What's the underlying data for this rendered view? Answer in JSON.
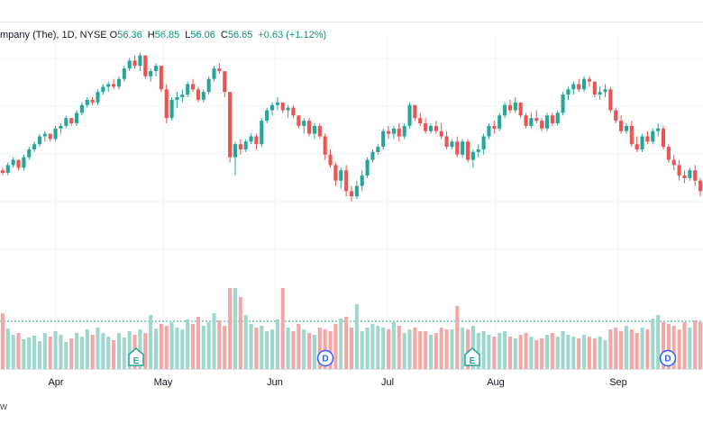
{
  "legend": {
    "title": "mpany (The), 1D, NYSE",
    "o_label": "O",
    "o": "56.36",
    "h_label": "H",
    "h": "56.85",
    "l_label": "L",
    "l": "56.06",
    "c_label": "C",
    "c": "56.65",
    "change": "+0.63 (+1.12%)"
  },
  "attribution": "w",
  "colors": {
    "up": "#26a69a",
    "down": "#ef5350",
    "up_vol": "#9fd7cf",
    "down_vol": "#f5a7a6",
    "grid": "#f0f3fa"
  },
  "chart_data": {
    "type": "candlestick",
    "x_ticks": [
      "Apr",
      "May",
      "Jun",
      "Jul",
      "Aug",
      "Sep"
    ],
    "event_markers": [
      {
        "label": "E",
        "type": "earnings"
      },
      {
        "label": "D",
        "type": "dividend"
      },
      {
        "label": "E",
        "type": "earnings"
      },
      {
        "label": "D",
        "type": "dividend"
      }
    ],
    "ohlc_relative": [
      [
        0.52,
        0.53,
        0.5,
        0.51
      ],
      [
        0.51,
        0.55,
        0.5,
        0.54
      ],
      [
        0.54,
        0.57,
        0.53,
        0.56
      ],
      [
        0.56,
        0.56,
        0.52,
        0.53
      ],
      [
        0.53,
        0.58,
        0.52,
        0.57
      ],
      [
        0.57,
        0.61,
        0.56,
        0.6
      ],
      [
        0.6,
        0.63,
        0.59,
        0.62
      ],
      [
        0.62,
        0.66,
        0.61,
        0.65
      ],
      [
        0.65,
        0.67,
        0.63,
        0.66
      ],
      [
        0.66,
        0.66,
        0.63,
        0.64
      ],
      [
        0.64,
        0.69,
        0.63,
        0.68
      ],
      [
        0.68,
        0.7,
        0.66,
        0.69
      ],
      [
        0.69,
        0.73,
        0.68,
        0.72
      ],
      [
        0.72,
        0.72,
        0.69,
        0.7
      ],
      [
        0.7,
        0.75,
        0.69,
        0.74
      ],
      [
        0.74,
        0.78,
        0.73,
        0.77
      ],
      [
        0.77,
        0.8,
        0.76,
        0.79
      ],
      [
        0.79,
        0.8,
        0.77,
        0.78
      ],
      [
        0.78,
        0.83,
        0.77,
        0.82
      ],
      [
        0.82,
        0.85,
        0.81,
        0.84
      ],
      [
        0.84,
        0.86,
        0.82,
        0.85
      ],
      [
        0.85,
        0.87,
        0.83,
        0.84
      ],
      [
        0.84,
        0.88,
        0.83,
        0.87
      ],
      [
        0.87,
        0.92,
        0.86,
        0.91
      ],
      [
        0.91,
        0.95,
        0.9,
        0.94
      ],
      [
        0.94,
        0.96,
        0.91,
        0.92
      ],
      [
        0.92,
        0.97,
        0.9,
        0.96
      ],
      [
        0.96,
        0.96,
        0.87,
        0.88
      ],
      [
        0.88,
        0.91,
        0.86,
        0.9
      ],
      [
        0.9,
        0.93,
        0.88,
        0.92
      ],
      [
        0.92,
        0.92,
        0.82,
        0.83
      ],
      [
        0.83,
        0.85,
        0.7,
        0.72
      ],
      [
        0.72,
        0.8,
        0.71,
        0.79
      ],
      [
        0.79,
        0.82,
        0.76,
        0.8
      ],
      [
        0.8,
        0.83,
        0.78,
        0.81
      ],
      [
        0.81,
        0.86,
        0.8,
        0.85
      ],
      [
        0.85,
        0.87,
        0.82,
        0.83
      ],
      [
        0.83,
        0.84,
        0.78,
        0.79
      ],
      [
        0.79,
        0.83,
        0.78,
        0.82
      ],
      [
        0.82,
        0.88,
        0.81,
        0.87
      ],
      [
        0.87,
        0.92,
        0.86,
        0.91
      ],
      [
        0.91,
        0.93,
        0.89,
        0.9
      ],
      [
        0.9,
        0.9,
        0.8,
        0.82
      ],
      [
        0.82,
        0.82,
        0.55,
        0.57
      ],
      [
        0.57,
        0.63,
        0.5,
        0.62
      ],
      [
        0.62,
        0.64,
        0.58,
        0.6
      ],
      [
        0.6,
        0.64,
        0.59,
        0.63
      ],
      [
        0.63,
        0.66,
        0.62,
        0.65
      ],
      [
        0.65,
        0.66,
        0.6,
        0.62
      ],
      [
        0.62,
        0.72,
        0.61,
        0.71
      ],
      [
        0.71,
        0.76,
        0.7,
        0.75
      ],
      [
        0.75,
        0.78,
        0.73,
        0.77
      ],
      [
        0.77,
        0.8,
        0.75,
        0.78
      ],
      [
        0.78,
        0.78,
        0.74,
        0.75
      ],
      [
        0.75,
        0.77,
        0.72,
        0.76
      ],
      [
        0.76,
        0.77,
        0.72,
        0.73
      ],
      [
        0.73,
        0.73,
        0.68,
        0.69
      ],
      [
        0.69,
        0.72,
        0.66,
        0.71
      ],
      [
        0.71,
        0.72,
        0.65,
        0.66
      ],
      [
        0.66,
        0.7,
        0.64,
        0.69
      ],
      [
        0.69,
        0.7,
        0.64,
        0.65
      ],
      [
        0.65,
        0.66,
        0.56,
        0.58
      ],
      [
        0.58,
        0.6,
        0.53,
        0.54
      ],
      [
        0.54,
        0.55,
        0.46,
        0.48
      ],
      [
        0.48,
        0.53,
        0.45,
        0.52
      ],
      [
        0.52,
        0.54,
        0.42,
        0.44
      ],
      [
        0.44,
        0.46,
        0.4,
        0.42
      ],
      [
        0.42,
        0.48,
        0.41,
        0.46
      ],
      [
        0.46,
        0.52,
        0.44,
        0.5
      ],
      [
        0.5,
        0.57,
        0.49,
        0.56
      ],
      [
        0.56,
        0.6,
        0.55,
        0.59
      ],
      [
        0.59,
        0.62,
        0.58,
        0.61
      ],
      [
        0.61,
        0.68,
        0.6,
        0.67
      ],
      [
        0.67,
        0.69,
        0.64,
        0.66
      ],
      [
        0.66,
        0.69,
        0.64,
        0.68
      ],
      [
        0.68,
        0.7,
        0.63,
        0.65
      ],
      [
        0.65,
        0.7,
        0.64,
        0.69
      ],
      [
        0.69,
        0.78,
        0.68,
        0.77
      ],
      [
        0.77,
        0.77,
        0.71,
        0.72
      ],
      [
        0.72,
        0.74,
        0.69,
        0.7
      ],
      [
        0.7,
        0.72,
        0.66,
        0.67
      ],
      [
        0.67,
        0.7,
        0.66,
        0.69
      ],
      [
        0.69,
        0.71,
        0.66,
        0.67
      ],
      [
        0.67,
        0.7,
        0.64,
        0.65
      ],
      [
        0.65,
        0.67,
        0.6,
        0.61
      ],
      [
        0.61,
        0.64,
        0.6,
        0.63
      ],
      [
        0.63,
        0.65,
        0.57,
        0.58
      ],
      [
        0.58,
        0.64,
        0.57,
        0.63
      ],
      [
        0.63,
        0.64,
        0.55,
        0.56
      ],
      [
        0.56,
        0.6,
        0.53,
        0.59
      ],
      [
        0.59,
        0.62,
        0.57,
        0.6
      ],
      [
        0.6,
        0.66,
        0.58,
        0.65
      ],
      [
        0.65,
        0.7,
        0.64,
        0.69
      ],
      [
        0.69,
        0.71,
        0.66,
        0.68
      ],
      [
        0.68,
        0.74,
        0.67,
        0.73
      ],
      [
        0.73,
        0.78,
        0.72,
        0.77
      ],
      [
        0.77,
        0.79,
        0.74,
        0.75
      ],
      [
        0.75,
        0.8,
        0.74,
        0.78
      ],
      [
        0.78,
        0.78,
        0.72,
        0.73
      ],
      [
        0.73,
        0.74,
        0.68,
        0.69
      ],
      [
        0.69,
        0.74,
        0.68,
        0.72
      ],
      [
        0.72,
        0.75,
        0.7,
        0.71
      ],
      [
        0.71,
        0.72,
        0.67,
        0.68
      ],
      [
        0.68,
        0.74,
        0.67,
        0.73
      ],
      [
        0.73,
        0.74,
        0.69,
        0.7
      ],
      [
        0.7,
        0.75,
        0.69,
        0.74
      ],
      [
        0.74,
        0.82,
        0.73,
        0.81
      ],
      [
        0.81,
        0.84,
        0.79,
        0.83
      ],
      [
        0.83,
        0.86,
        0.81,
        0.85
      ],
      [
        0.85,
        0.87,
        0.82,
        0.83
      ],
      [
        0.83,
        0.88,
        0.82,
        0.87
      ],
      [
        0.87,
        0.88,
        0.84,
        0.86
      ],
      [
        0.86,
        0.86,
        0.8,
        0.81
      ],
      [
        0.81,
        0.84,
        0.79,
        0.82
      ],
      [
        0.82,
        0.85,
        0.8,
        0.83
      ],
      [
        0.83,
        0.84,
        0.74,
        0.75
      ],
      [
        0.75,
        0.76,
        0.7,
        0.71
      ],
      [
        0.71,
        0.73,
        0.66,
        0.67
      ],
      [
        0.67,
        0.7,
        0.66,
        0.69
      ],
      [
        0.69,
        0.71,
        0.61,
        0.62
      ],
      [
        0.62,
        0.65,
        0.59,
        0.6
      ],
      [
        0.6,
        0.66,
        0.59,
        0.65
      ],
      [
        0.65,
        0.67,
        0.62,
        0.63
      ],
      [
        0.63,
        0.68,
        0.62,
        0.67
      ],
      [
        0.67,
        0.7,
        0.65,
        0.68
      ],
      [
        0.68,
        0.69,
        0.6,
        0.61
      ],
      [
        0.61,
        0.62,
        0.55,
        0.56
      ],
      [
        0.56,
        0.58,
        0.52,
        0.54
      ],
      [
        0.54,
        0.56,
        0.48,
        0.5
      ],
      [
        0.5,
        0.52,
        0.47,
        0.49
      ],
      [
        0.49,
        0.53,
        0.48,
        0.52
      ],
      [
        0.52,
        0.54,
        0.46,
        0.48
      ],
      [
        0.48,
        0.49,
        0.42,
        0.44
      ]
    ],
    "volume_relative": [
      0.62,
      0.45,
      0.38,
      0.4,
      0.33,
      0.35,
      0.37,
      0.31,
      0.4,
      0.36,
      0.42,
      0.38,
      0.3,
      0.34,
      0.4,
      0.36,
      0.44,
      0.38,
      0.46,
      0.4,
      0.36,
      0.32,
      0.4,
      0.35,
      0.42,
      0.38,
      0.44,
      0.4,
      0.6,
      0.45,
      0.5,
      0.48,
      0.52,
      0.46,
      0.44,
      0.55,
      0.5,
      0.58,
      0.48,
      0.52,
      0.62,
      0.54,
      0.48,
      0.9,
      0.9,
      0.8,
      0.6,
      0.5,
      0.46,
      0.48,
      0.42,
      0.44,
      0.55,
      0.9,
      0.46,
      0.42,
      0.5,
      0.44,
      0.4,
      0.38,
      0.46,
      0.44,
      0.42,
      0.5,
      0.56,
      0.58,
      0.46,
      0.72,
      0.42,
      0.46,
      0.5,
      0.48,
      0.46,
      0.44,
      0.52,
      0.48,
      0.4,
      0.44,
      0.46,
      0.42,
      0.42,
      0.38,
      0.4,
      0.46,
      0.44,
      0.44,
      0.7,
      0.46,
      0.44,
      0.48,
      0.4,
      0.42,
      0.38,
      0.36,
      0.4,
      0.42,
      0.36,
      0.34,
      0.38,
      0.4,
      0.36,
      0.32,
      0.34,
      0.38,
      0.4,
      0.36,
      0.42,
      0.38,
      0.36,
      0.34,
      0.38,
      0.36,
      0.34,
      0.36,
      0.32,
      0.44,
      0.46,
      0.42,
      0.48,
      0.44,
      0.4,
      0.46,
      0.44,
      0.56,
      0.6,
      0.52,
      0.5,
      0.48,
      0.44,
      0.52,
      0.46,
      0.54,
      0.52
    ]
  }
}
